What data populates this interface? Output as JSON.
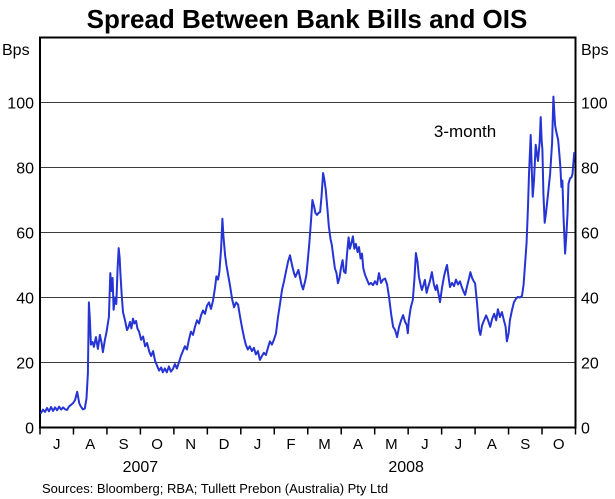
{
  "header": {
    "title": "Spread Between Bank Bills and OIS"
  },
  "footer": {
    "sources": "Sources: Bloomberg; RBA; Tullett Prebon (Australia) Pty Ltd"
  },
  "colors": {
    "line": "#2634d4",
    "annotation": "#2130dd",
    "grid": "#3c3c3c",
    "axis": "#000000",
    "background": "#ffffff",
    "text": "#000000"
  },
  "chart_data": {
    "type": "line",
    "title": "Spread Between Bank Bills and OIS",
    "y_unit": "Bps",
    "ylim": [
      0,
      120
    ],
    "y_ticks": [
      0,
      20,
      40,
      60,
      80,
      100
    ],
    "xlim_months": [
      0,
      16
    ],
    "x_month_labels": [
      "J",
      "A",
      "S",
      "O",
      "N",
      "D",
      "J",
      "F",
      "M",
      "A",
      "M",
      "J",
      "J",
      "A",
      "S",
      "O"
    ],
    "x_month_span": "Jul 2007 - Oct 2008",
    "years": [
      {
        "label": "2007",
        "t": 3.0
      },
      {
        "label": "2008",
        "t": 10.94
      }
    ],
    "grid": "horizontal",
    "legend": "none",
    "annotations": [
      {
        "text": "3-month",
        "t": 12.7,
        "v": 89.4
      }
    ],
    "series": [
      {
        "name": "3-month",
        "unit": "bps",
        "x_unit": "months since 1 Jul 2007",
        "points": [
          [
            0.03,
            4.5
          ],
          [
            0.09,
            5.5
          ],
          [
            0.15,
            4.8
          ],
          [
            0.21,
            6
          ],
          [
            0.27,
            5
          ],
          [
            0.33,
            6.3
          ],
          [
            0.39,
            5.1
          ],
          [
            0.45,
            6.2
          ],
          [
            0.51,
            5.3
          ],
          [
            0.57,
            6.4
          ],
          [
            0.63,
            5.5
          ],
          [
            0.69,
            6.2
          ],
          [
            0.75,
            5.6
          ],
          [
            0.81,
            5.4
          ],
          [
            0.87,
            6.5
          ],
          [
            0.93,
            7
          ],
          [
            0.99,
            7.5
          ],
          [
            1.05,
            8.5
          ],
          [
            1.11,
            11
          ],
          [
            1.17,
            7.5
          ],
          [
            1.22,
            6.5
          ],
          [
            1.28,
            5.6
          ],
          [
            1.34,
            5.8
          ],
          [
            1.39,
            9
          ],
          [
            1.43,
            16.8
          ],
          [
            1.46,
            38.5
          ],
          [
            1.49,
            33
          ],
          [
            1.52,
            25.5
          ],
          [
            1.57,
            26.3
          ],
          [
            1.61,
            24.8
          ],
          [
            1.67,
            27.8
          ],
          [
            1.73,
            24.2
          ],
          [
            1.79,
            28.5
          ],
          [
            1.84,
            26
          ],
          [
            1.88,
            23.2
          ],
          [
            1.94,
            27
          ],
          [
            1.99,
            29.5
          ],
          [
            2.02,
            31.5
          ],
          [
            2.06,
            34
          ],
          [
            2.1,
            47.5
          ],
          [
            2.14,
            42
          ],
          [
            2.17,
            46
          ],
          [
            2.2,
            36.2
          ],
          [
            2.24,
            40
          ],
          [
            2.28,
            38
          ],
          [
            2.32,
            49
          ],
          [
            2.35,
            55.2
          ],
          [
            2.38,
            52
          ],
          [
            2.4,
            48
          ],
          [
            2.44,
            40.8
          ],
          [
            2.48,
            35.5
          ],
          [
            2.54,
            33
          ],
          [
            2.6,
            30
          ],
          [
            2.64,
            30.8
          ],
          [
            2.69,
            32.5
          ],
          [
            2.73,
            30.5
          ],
          [
            2.78,
            33.5
          ],
          [
            2.82,
            32
          ],
          [
            2.87,
            32.8
          ],
          [
            2.91,
            30.5
          ],
          [
            2.96,
            29.5
          ],
          [
            3.02,
            27
          ],
          [
            3.08,
            28
          ],
          [
            3.14,
            25
          ],
          [
            3.2,
            26
          ],
          [
            3.26,
            23.5
          ],
          [
            3.32,
            22
          ],
          [
            3.38,
            23.5
          ],
          [
            3.44,
            20.5
          ],
          [
            3.5,
            19
          ],
          [
            3.56,
            17.5
          ],
          [
            3.62,
            18.5
          ],
          [
            3.67,
            17
          ],
          [
            3.73,
            18.2
          ],
          [
            3.79,
            17
          ],
          [
            3.85,
            18.8
          ],
          [
            3.91,
            17.2
          ],
          [
            3.97,
            18
          ],
          [
            4.03,
            19.5
          ],
          [
            4.09,
            18.2
          ],
          [
            4.15,
            20
          ],
          [
            4.21,
            22
          ],
          [
            4.27,
            23.5
          ],
          [
            4.33,
            25
          ],
          [
            4.39,
            24
          ],
          [
            4.45,
            27
          ],
          [
            4.51,
            29.5
          ],
          [
            4.57,
            28.5
          ],
          [
            4.63,
            31
          ],
          [
            4.69,
            33
          ],
          [
            4.75,
            32
          ],
          [
            4.81,
            34.5
          ],
          [
            4.87,
            36
          ],
          [
            4.93,
            35
          ],
          [
            4.99,
            37.5
          ],
          [
            5.05,
            38.5
          ],
          [
            5.11,
            36.5
          ],
          [
            5.17,
            39
          ],
          [
            5.23,
            43
          ],
          [
            5.27,
            46.5
          ],
          [
            5.32,
            45.5
          ],
          [
            5.36,
            48
          ],
          [
            5.41,
            55
          ],
          [
            5.45,
            64.2
          ],
          [
            5.48,
            59
          ],
          [
            5.53,
            53
          ],
          [
            5.57,
            50
          ],
          [
            5.62,
            47
          ],
          [
            5.68,
            43.5
          ],
          [
            5.74,
            39.5
          ],
          [
            5.8,
            37
          ],
          [
            5.86,
            38.5
          ],
          [
            5.92,
            37.8
          ],
          [
            5.98,
            34
          ],
          [
            6.04,
            30.5
          ],
          [
            6.1,
            27.5
          ],
          [
            6.15,
            25.5
          ],
          [
            6.21,
            24
          ],
          [
            6.27,
            25
          ],
          [
            6.33,
            23.5
          ],
          [
            6.39,
            24.5
          ],
          [
            6.45,
            22.5
          ],
          [
            6.51,
            23.5
          ],
          [
            6.57,
            20.8
          ],
          [
            6.63,
            22
          ],
          [
            6.69,
            23
          ],
          [
            6.75,
            22.3
          ],
          [
            6.81,
            24.5
          ],
          [
            6.87,
            26.5
          ],
          [
            6.93,
            25.5
          ],
          [
            6.99,
            27
          ],
          [
            7.05,
            29
          ],
          [
            7.11,
            34
          ],
          [
            7.17,
            38
          ],
          [
            7.23,
            42.3
          ],
          [
            7.29,
            45
          ],
          [
            7.35,
            48
          ],
          [
            7.41,
            51
          ],
          [
            7.47,
            53
          ],
          [
            7.53,
            50
          ],
          [
            7.59,
            47.5
          ],
          [
            7.63,
            46.3
          ],
          [
            7.68,
            47.5
          ],
          [
            7.72,
            48.5
          ],
          [
            7.77,
            46
          ],
          [
            7.81,
            44
          ],
          [
            7.86,
            42.5
          ],
          [
            7.92,
            45
          ],
          [
            7.96,
            47
          ],
          [
            8.01,
            52.5
          ],
          [
            8.05,
            57
          ],
          [
            8.1,
            64
          ],
          [
            8.14,
            70
          ],
          [
            8.19,
            68
          ],
          [
            8.23,
            66
          ],
          [
            8.28,
            65.4
          ],
          [
            8.32,
            66
          ],
          [
            8.37,
            66.3
          ],
          [
            8.41,
            71
          ],
          [
            8.46,
            78.3
          ],
          [
            8.5,
            76
          ],
          [
            8.54,
            73
          ],
          [
            8.59,
            67
          ],
          [
            8.63,
            62
          ],
          [
            8.68,
            58
          ],
          [
            8.72,
            56.2
          ],
          [
            8.77,
            52.2
          ],
          [
            8.81,
            49
          ],
          [
            8.86,
            47.5
          ],
          [
            8.9,
            44.4
          ],
          [
            8.95,
            46
          ],
          [
            8.99,
            49
          ],
          [
            9.04,
            51.5
          ],
          [
            9.08,
            48
          ],
          [
            9.13,
            47.5
          ],
          [
            9.17,
            53
          ],
          [
            9.22,
            58.5
          ],
          [
            9.26,
            55
          ],
          [
            9.31,
            57
          ],
          [
            9.35,
            58.8
          ],
          [
            9.39,
            55
          ],
          [
            9.44,
            56.5
          ],
          [
            9.49,
            54
          ],
          [
            9.53,
            55.5
          ],
          [
            9.58,
            52
          ],
          [
            9.62,
            53.5
          ],
          [
            9.66,
            49
          ],
          [
            9.71,
            47
          ],
          [
            9.77,
            45.5
          ],
          [
            9.83,
            44
          ],
          [
            9.89,
            44.5
          ],
          [
            9.95,
            43.8
          ],
          [
            10.01,
            45
          ],
          [
            10.07,
            44
          ],
          [
            10.13,
            47.5
          ],
          [
            10.19,
            44.5
          ],
          [
            10.25,
            45.5
          ],
          [
            10.31,
            45.8
          ],
          [
            10.37,
            44
          ],
          [
            10.43,
            40
          ],
          [
            10.49,
            35
          ],
          [
            10.55,
            31
          ],
          [
            10.61,
            30
          ],
          [
            10.67,
            27.8
          ],
          [
            10.73,
            31
          ],
          [
            10.79,
            33
          ],
          [
            10.85,
            34.6
          ],
          [
            10.91,
            32.5
          ],
          [
            10.96,
            31.5
          ],
          [
            10.99,
            29
          ],
          [
            11.02,
            33
          ],
          [
            11.08,
            37
          ],
          [
            11.14,
            39.2
          ],
          [
            11.19,
            46
          ],
          [
            11.23,
            53.7
          ],
          [
            11.28,
            51
          ],
          [
            11.32,
            46.5
          ],
          [
            11.37,
            44
          ],
          [
            11.41,
            42.3
          ],
          [
            11.46,
            44
          ],
          [
            11.5,
            45.4
          ],
          [
            11.55,
            41.4
          ],
          [
            11.59,
            43
          ],
          [
            11.65,
            45
          ],
          [
            11.71,
            47.8
          ],
          [
            11.77,
            44
          ],
          [
            11.82,
            42.3
          ],
          [
            11.86,
            43.8
          ],
          [
            11.91,
            41
          ],
          [
            11.95,
            38.6
          ],
          [
            12.01,
            43
          ],
          [
            12.07,
            46.5
          ],
          [
            12.13,
            49
          ],
          [
            12.16,
            50
          ],
          [
            12.21,
            46
          ],
          [
            12.25,
            43.2
          ],
          [
            12.31,
            44.5
          ],
          [
            12.37,
            43.5
          ],
          [
            12.43,
            45.5
          ],
          [
            12.49,
            44
          ],
          [
            12.55,
            45
          ],
          [
            12.61,
            43
          ],
          [
            12.67,
            41.5
          ],
          [
            12.7,
            40.8
          ],
          [
            12.76,
            43.5
          ],
          [
            12.82,
            46
          ],
          [
            12.86,
            47.8
          ],
          [
            12.91,
            46
          ],
          [
            12.97,
            44.8
          ],
          [
            13.0,
            44.4
          ],
          [
            13.06,
            38
          ],
          [
            13.12,
            30
          ],
          [
            13.16,
            28.5
          ],
          [
            13.21,
            31.5
          ],
          [
            13.27,
            33
          ],
          [
            13.33,
            34.5
          ],
          [
            13.39,
            33
          ],
          [
            13.45,
            31
          ],
          [
            13.51,
            33.5
          ],
          [
            13.57,
            35
          ],
          [
            13.63,
            33
          ],
          [
            13.68,
            36.4
          ],
          [
            13.74,
            34
          ],
          [
            13.8,
            35.5
          ],
          [
            13.86,
            33
          ],
          [
            13.91,
            31
          ],
          [
            13.95,
            26.5
          ],
          [
            14.0,
            29
          ],
          [
            14.04,
            33
          ],
          [
            14.1,
            36
          ],
          [
            14.16,
            38.5
          ],
          [
            14.22,
            39.6
          ],
          [
            14.28,
            40.2
          ],
          [
            14.34,
            40
          ],
          [
            14.4,
            40.5
          ],
          [
            14.45,
            44
          ],
          [
            14.49,
            50
          ],
          [
            14.54,
            57
          ],
          [
            14.58,
            68
          ],
          [
            14.61,
            78
          ],
          [
            14.66,
            90
          ],
          [
            14.69,
            80
          ],
          [
            14.72,
            71
          ],
          [
            14.76,
            76
          ],
          [
            14.81,
            87
          ],
          [
            14.85,
            84
          ],
          [
            14.88,
            82
          ],
          [
            14.93,
            88
          ],
          [
            14.96,
            95.5
          ],
          [
            14.99,
            88
          ],
          [
            15.01,
            85.5
          ],
          [
            15.04,
            72
          ],
          [
            15.08,
            63
          ],
          [
            15.12,
            66
          ],
          [
            15.18,
            72
          ],
          [
            15.24,
            78
          ],
          [
            15.3,
            87.6
          ],
          [
            15.34,
            101.8
          ],
          [
            15.39,
            93
          ],
          [
            15.43,
            90.8
          ],
          [
            15.48,
            88.6
          ],
          [
            15.52,
            84
          ],
          [
            15.55,
            80
          ],
          [
            15.58,
            74
          ],
          [
            15.61,
            76
          ],
          [
            15.64,
            65
          ],
          [
            15.69,
            53.5
          ],
          [
            15.73,
            60
          ],
          [
            15.76,
            65.7
          ],
          [
            15.79,
            75
          ],
          [
            15.84,
            76.7
          ],
          [
            15.88,
            77
          ],
          [
            15.91,
            78
          ],
          [
            15.96,
            84.5
          ]
        ]
      }
    ]
  }
}
